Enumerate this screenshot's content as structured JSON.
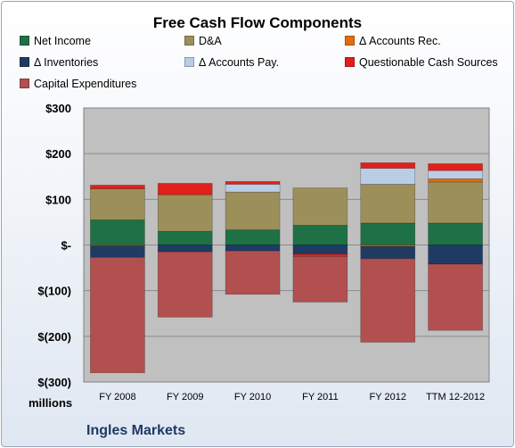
{
  "chart_data": {
    "type": "bar",
    "stacked": true,
    "title": "Free Cash Flow Components",
    "units": "millions",
    "company": "Ingles Markets",
    "categories": [
      "FY 2008",
      "FY 2009",
      "FY 2010",
      "FY 2011",
      "FY 2012",
      "TTM 12-2012"
    ],
    "ylim": [
      -300,
      300
    ],
    "yticks": [
      300,
      200,
      100,
      0,
      -100,
      -200,
      -300
    ],
    "ytick_labels": [
      "$300",
      "$200",
      "$100",
      "$-",
      "$(100)",
      "$(200)",
      "$(300)"
    ],
    "grid": true,
    "legend_position": "top",
    "series": [
      {
        "name": "Net Income",
        "color": "#1e7145",
        "values": [
          55,
          30,
          33,
          43,
          48,
          48
        ]
      },
      {
        "name": "D&A",
        "color": "#9c8f5a",
        "values": [
          68,
          80,
          83,
          82,
          85,
          90
        ]
      },
      {
        "name": "Δ Accounts Rec.",
        "color": "#e46c0a",
        "values": [
          -2,
          0,
          0,
          0,
          -3,
          7
        ]
      },
      {
        "name": "Δ Inventories",
        "color": "#1f3b63",
        "values": [
          -25,
          -15,
          -13,
          -20,
          -27,
          -42
        ]
      },
      {
        "name": "Δ Accounts Pay.",
        "color": "#b9cde5",
        "values": [
          0,
          0,
          17,
          0,
          35,
          18
        ]
      },
      {
        "name": "Questionable Cash Sources",
        "color": "#e0201b",
        "values": [
          8,
          25,
          6,
          -5,
          12,
          15
        ]
      },
      {
        "name": "Capital Expenditures",
        "color": "#b24f4f",
        "values": [
          -253,
          -143,
          -95,
          -100,
          -183,
          -145
        ]
      }
    ]
  }
}
